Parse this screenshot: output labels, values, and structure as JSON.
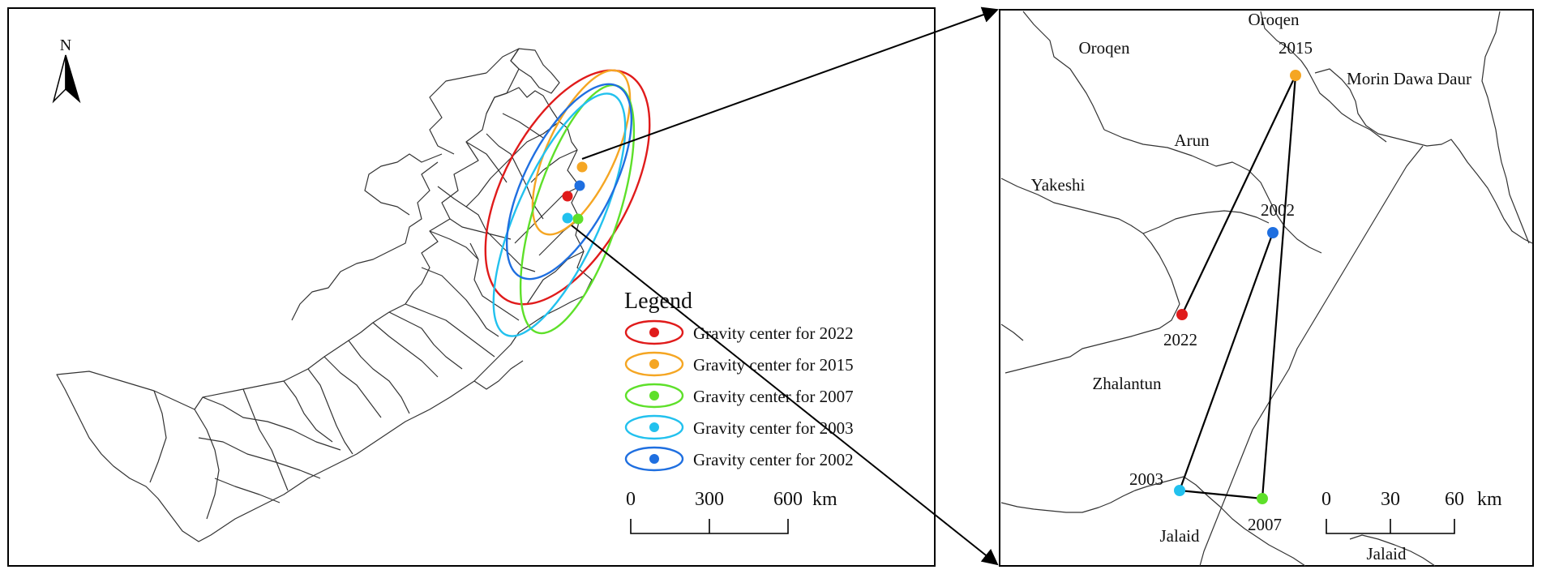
{
  "north_arrow": {
    "letter": "N"
  },
  "legend": {
    "title": "Legend",
    "items": [
      {
        "label": "Gravity center for 2022",
        "color": "#e01b1b"
      },
      {
        "label": "Gravity center for 2015",
        "color": "#f5a623"
      },
      {
        "label": "Gravity center for 2007",
        "color": "#5ee02a"
      },
      {
        "label": "Gravity center for 2003",
        "color": "#22c1ee"
      },
      {
        "label": "Gravity center for 2002",
        "color": "#1f6fe0"
      }
    ]
  },
  "left_scale": {
    "ticks": [
      "0",
      "300",
      "600"
    ],
    "unit": "km"
  },
  "right_scale": {
    "ticks": [
      "0",
      "30",
      "60"
    ],
    "unit": "km"
  },
  "right_map": {
    "region_labels": [
      "Oroqen",
      "Oroqen",
      "Morin Dawa Daur",
      "Arun",
      "Yakeshi",
      "Zhalantun",
      "Jalaid",
      "Jalaid"
    ],
    "point_labels": [
      "2015",
      "2002",
      "2022",
      "2003",
      "2007"
    ]
  }
}
